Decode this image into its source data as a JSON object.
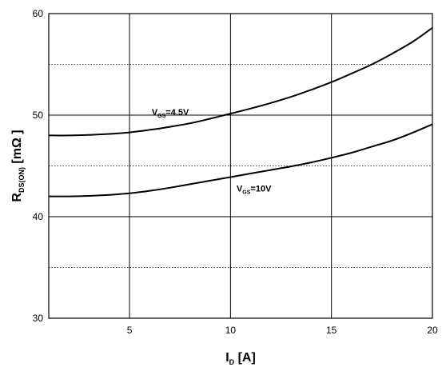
{
  "chart_data": {
    "type": "line",
    "title": "",
    "xlabel": {
      "main": "I",
      "sub": "D",
      "rest": " [A]"
    },
    "ylabel": {
      "main": "R",
      "sub": "DS(ON)",
      "rest": "  [mΩ  ]"
    },
    "xlim": [
      1,
      20
    ],
    "ylim": [
      30,
      60
    ],
    "x_ticks": [
      5,
      10,
      15,
      20
    ],
    "y_ticks": [
      30,
      40,
      50,
      60
    ],
    "y_minor_dotted": [
      35,
      45,
      55
    ],
    "grid": true,
    "series": [
      {
        "label_main": "V",
        "label_sub": "GS",
        "label_rest": "=4.5V",
        "x": [
          1,
          2,
          3,
          4,
          5,
          6,
          7,
          8,
          9,
          10,
          11,
          12,
          13,
          14,
          15,
          16,
          17,
          18,
          19,
          20
        ],
        "values": [
          48.0,
          48.0,
          48.05,
          48.15,
          48.3,
          48.55,
          48.85,
          49.2,
          49.65,
          50.15,
          50.65,
          51.2,
          51.8,
          52.5,
          53.25,
          54.1,
          55.0,
          56.05,
          57.2,
          58.6
        ]
      },
      {
        "label_main": "V",
        "label_sub": "GS",
        "label_rest": "=10V",
        "x": [
          1,
          2,
          3,
          4,
          5,
          6,
          7,
          8,
          9,
          10,
          11,
          12,
          13,
          14,
          15,
          16,
          17,
          18,
          19,
          20
        ],
        "values": [
          42.0,
          42.0,
          42.05,
          42.15,
          42.3,
          42.55,
          42.85,
          43.2,
          43.55,
          43.9,
          44.25,
          44.6,
          44.95,
          45.35,
          45.8,
          46.3,
          46.9,
          47.5,
          48.25,
          49.1
        ]
      }
    ]
  }
}
